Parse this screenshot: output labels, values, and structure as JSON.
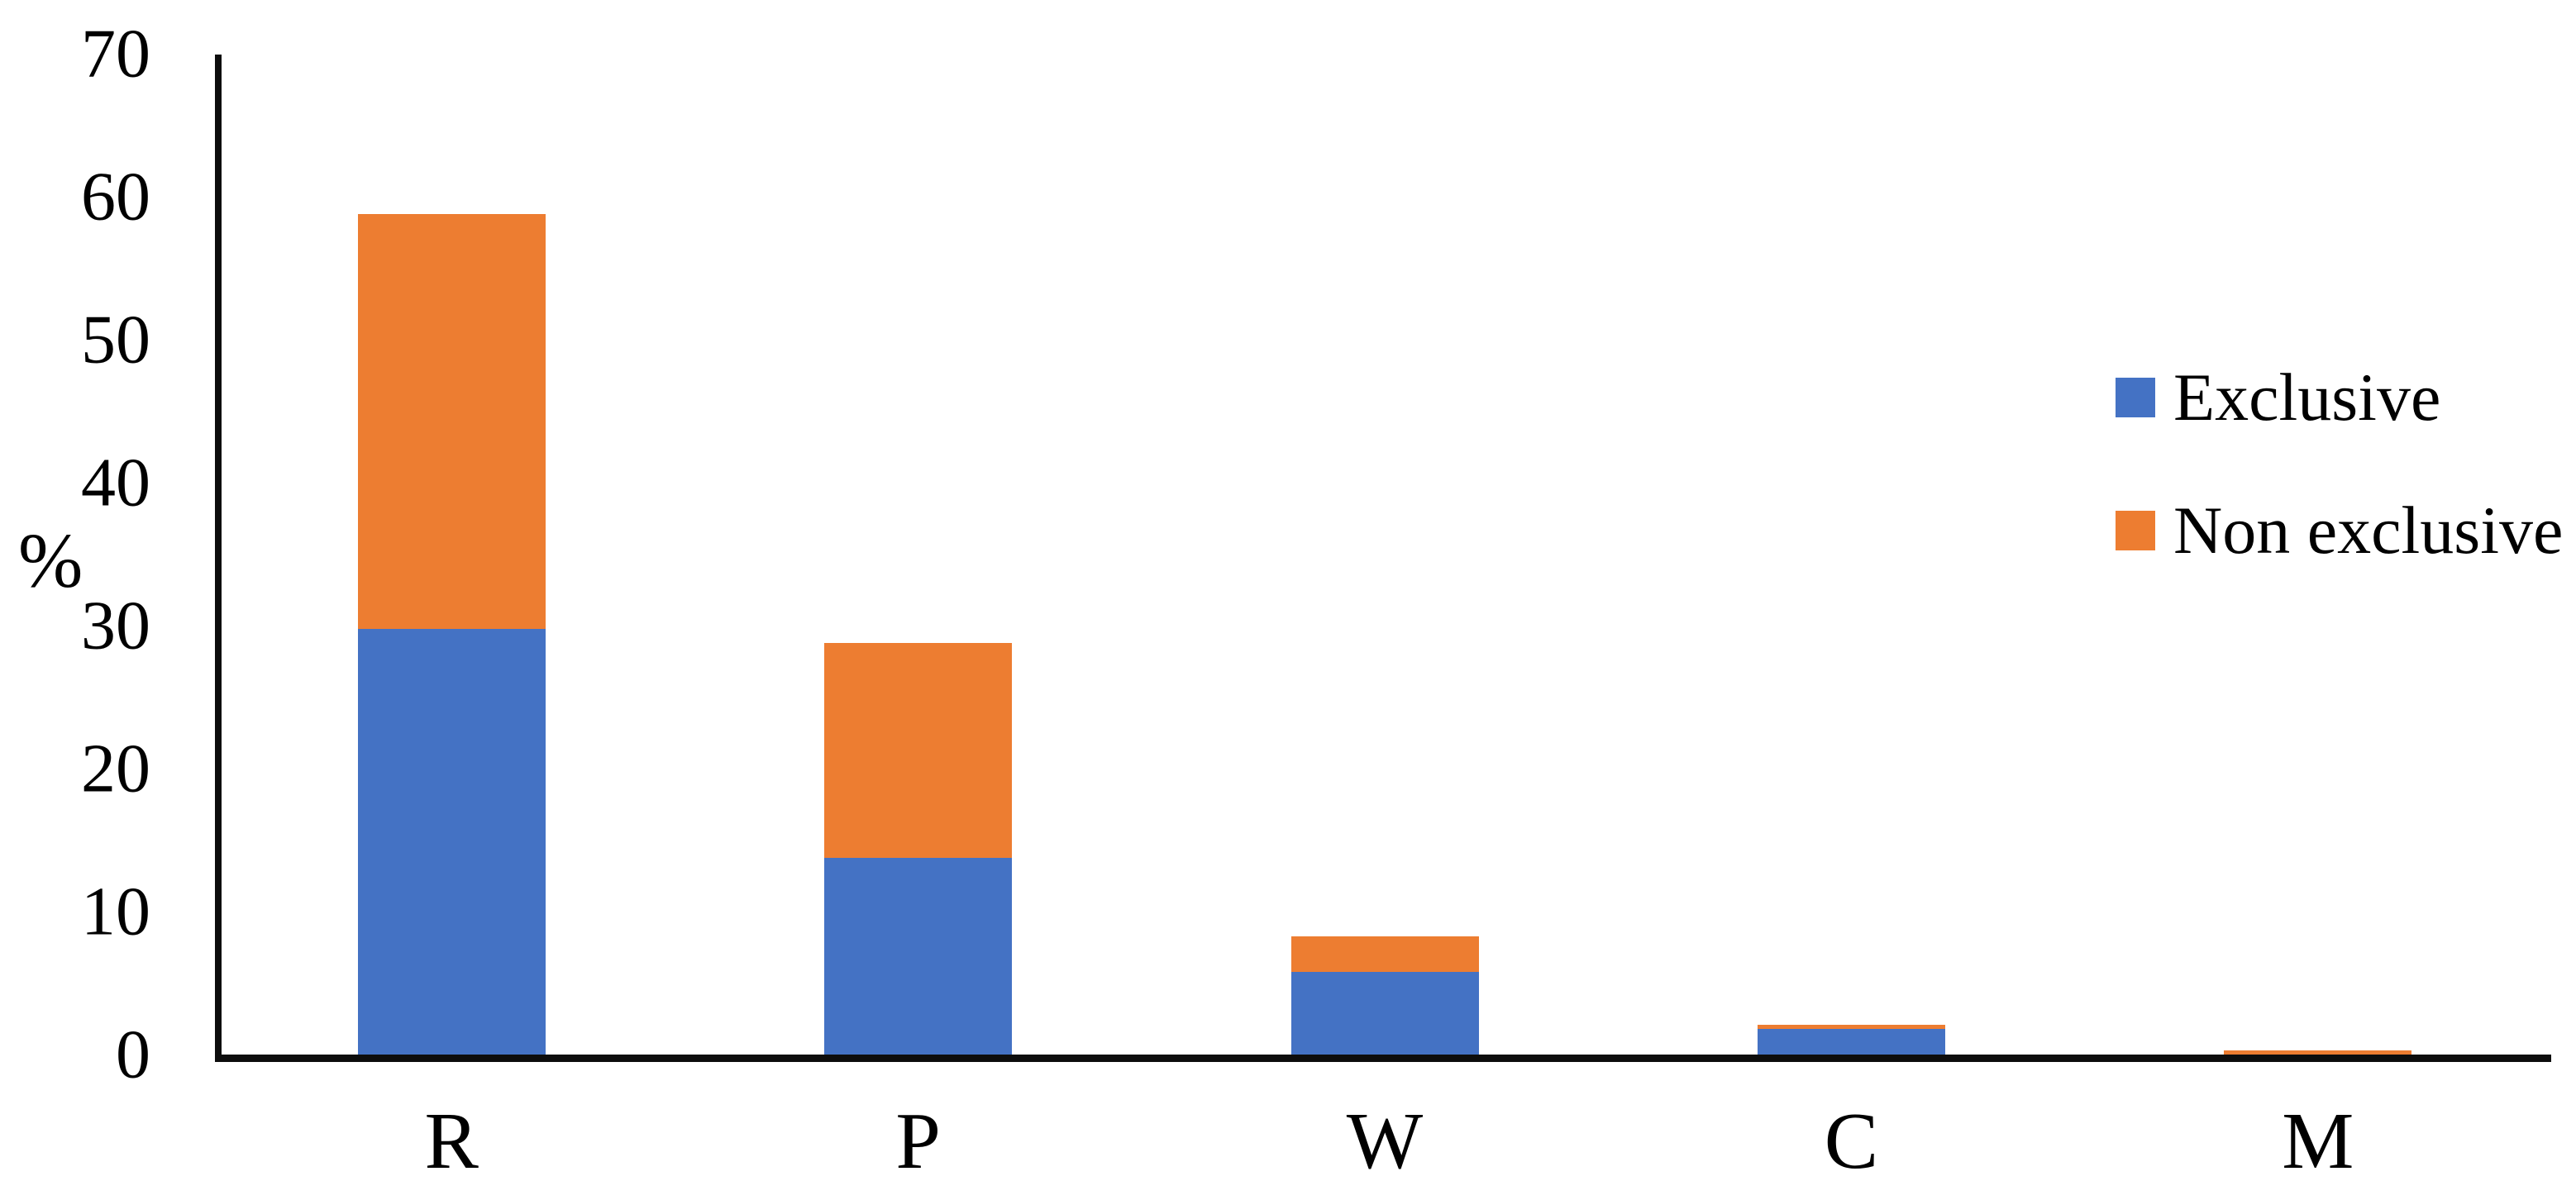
{
  "chart_data": {
    "type": "bar",
    "stacked": true,
    "title": "",
    "categories": [
      "R",
      "P",
      "W",
      "C",
      "M"
    ],
    "series": [
      {
        "name": "Exclusive",
        "color": "#4472C4",
        "values": [
          30,
          14,
          6,
          2,
          0
        ]
      },
      {
        "name": "Non exclusive",
        "color": "#ED7D31",
        "values": [
          29,
          15,
          2.5,
          0.3,
          0.5
        ]
      }
    ],
    "totals": [
      59,
      29,
      8.5,
      2.3,
      0.5
    ],
    "xlabel": "",
    "ylabel": "%",
    "ylim": [
      0,
      70
    ],
    "ytick_step": 10,
    "yticks": [
      "0",
      "10",
      "20",
      "30",
      "40",
      "50",
      "60",
      "70"
    ],
    "grid": false,
    "legend_position": "right-middle",
    "background": "#FFFFFF",
    "axis_color": "#0D0D0D"
  }
}
